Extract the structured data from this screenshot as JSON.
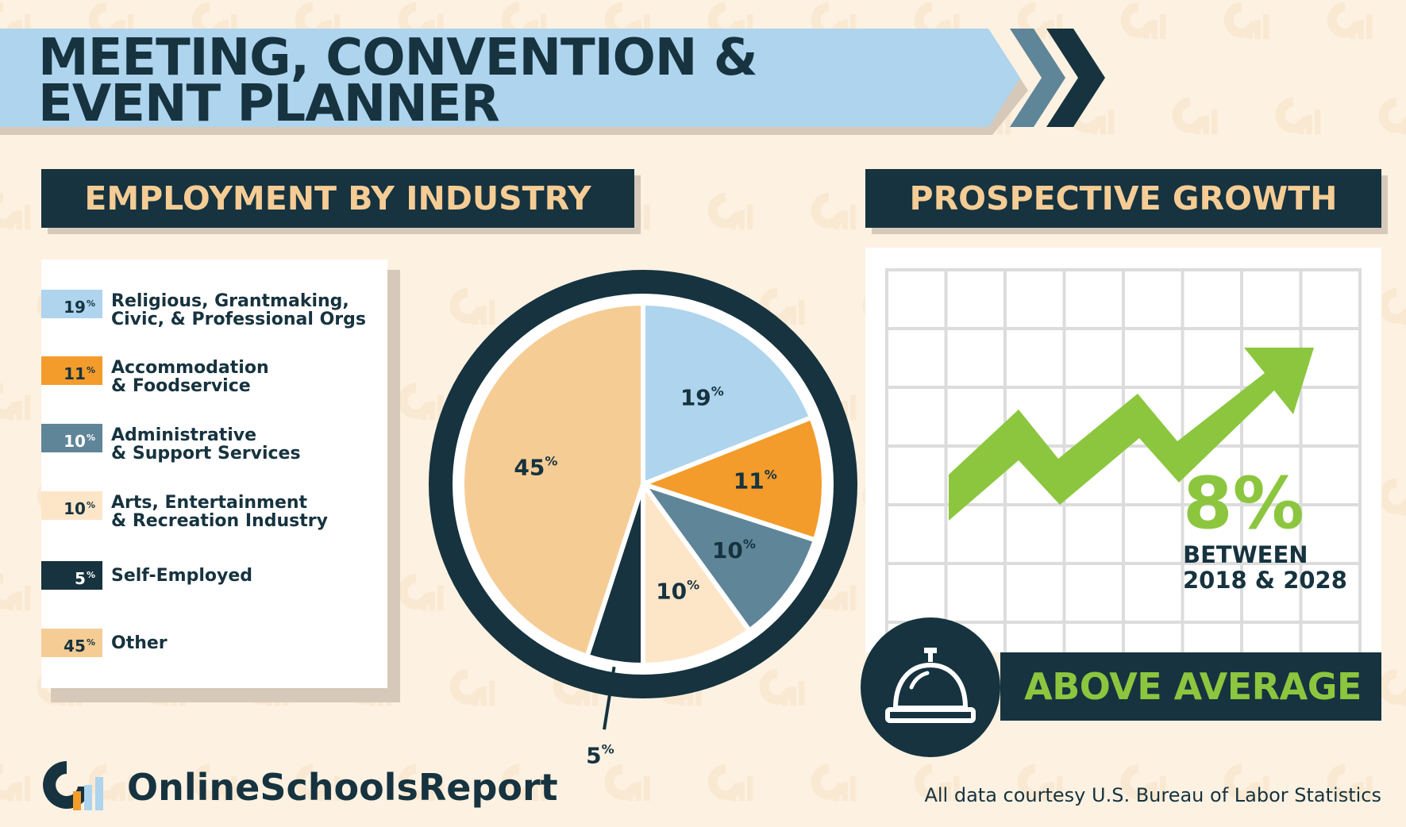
{
  "page": {
    "title_line1": "MEETING, CONVENTION &",
    "title_line2": "EVENT PLANNER",
    "brand": "OnlineSchoolsReport",
    "source": "All data courtesy U.S. Bureau of Labor Statistics"
  },
  "industry": {
    "header": "EMPLOYMENT BY INDUSTRY",
    "legend": [
      {
        "value": "19",
        "unit": "%",
        "label_line1": "Religious, Grantmaking,",
        "label_line2": "Civic, & Professional Orgs",
        "color": "#aed4ee"
      },
      {
        "value": "11",
        "unit": "%",
        "label_line1": "Accommodation",
        "label_line2": "& Foodservice",
        "color": "#f39c2b"
      },
      {
        "value": "10",
        "unit": "%",
        "label_line1": "Administrative",
        "label_line2": "& Support Services",
        "color": "#5f8599"
      },
      {
        "value": "10",
        "unit": "%",
        "label_line1": "Arts, Entertainment",
        "label_line2": "& Recreation Industry",
        "color": "#fde6c8"
      },
      {
        "value": "5",
        "unit": "%",
        "label_line1": "Self-Employed",
        "label_line2": "",
        "color": "#16333f"
      },
      {
        "value": "45",
        "unit": "%",
        "label_line1": "Other",
        "label_line2": "",
        "color": "#f6cc95"
      }
    ]
  },
  "chart_data": {
    "type": "pie",
    "categories": [
      "Religious, Grantmaking, Civic, & Professional Orgs",
      "Accommodation & Foodservice",
      "Administrative & Support Services",
      "Arts, Entertainment & Recreation Industry",
      "Self-Employed",
      "Other"
    ],
    "values": [
      19,
      11,
      10,
      10,
      5,
      45
    ],
    "colors": [
      "#aed4ee",
      "#f39c2b",
      "#5f8599",
      "#fde6c8",
      "#16333f",
      "#f6cc95"
    ],
    "unit": "%"
  },
  "growth": {
    "header": "PROSPECTIVE GROWTH",
    "value": "8%",
    "caption_line1": "BETWEEN",
    "caption_line2": "2018 & 2028",
    "rating": "ABOVE AVERAGE",
    "accent_color": "#8cc63f"
  },
  "icons": {
    "bell": "service-bell-icon",
    "arrow": "growth-arrow-icon",
    "logo": "brand-logo-icon",
    "chevrons": "chevron-right-icon"
  }
}
